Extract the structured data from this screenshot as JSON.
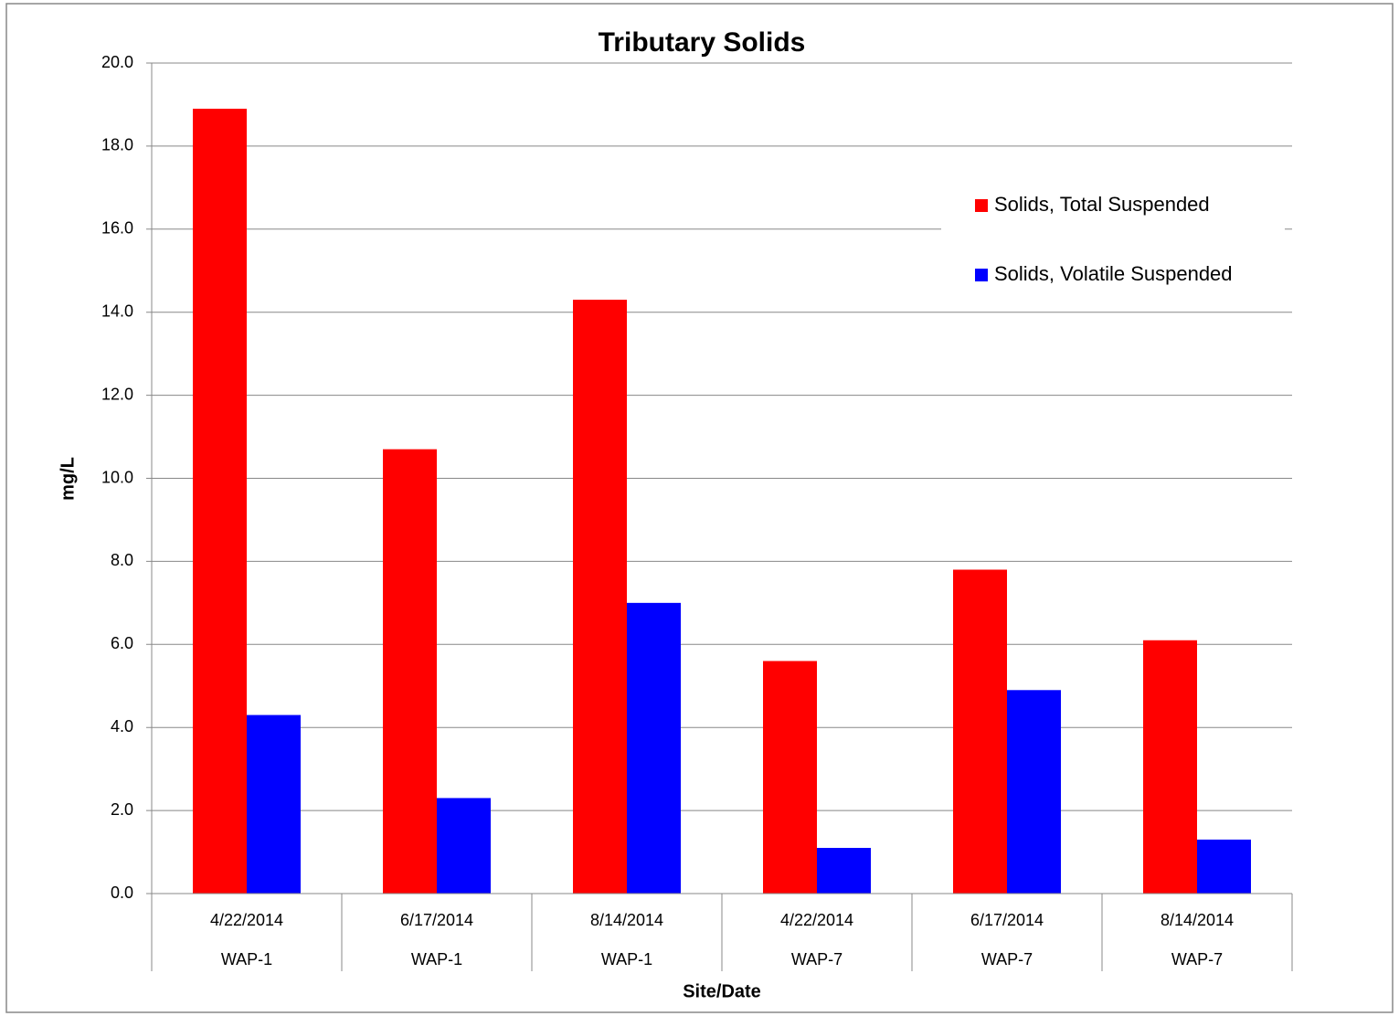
{
  "chart_data": {
    "type": "bar",
    "title": "Tributary Solids",
    "x_label": "Site/Date",
    "y_label": "mg/L",
    "categories": [
      "4/22/2014",
      "6/17/2014",
      "8/14/2014",
      "4/22/2014",
      "6/17/2014",
      "8/14/2014"
    ],
    "category_groups": [
      "WAP-1",
      "WAP-1",
      "WAP-1",
      "WAP-7",
      "WAP-7",
      "WAP-7"
    ],
    "series": [
      {
        "name": "Solids, Total Suspended",
        "color": "#ff0000",
        "values": [
          18.9,
          10.7,
          14.3,
          5.6,
          7.8,
          6.1
        ]
      },
      {
        "name": "Solids, Volatile Suspended",
        "color": "#0000ff",
        "values": [
          4.3,
          2.3,
          7.0,
          1.1,
          4.9,
          1.3
        ]
      }
    ],
    "ylim": [
      0,
      20
    ],
    "yticks": [
      {
        "value": 0,
        "label": "0.0"
      },
      {
        "value": 2,
        "label": "2.0"
      },
      {
        "value": 4,
        "label": "4.0"
      },
      {
        "value": 6,
        "label": "6.0"
      },
      {
        "value": 8,
        "label": "8.0"
      },
      {
        "value": 10,
        "label": "10.0"
      },
      {
        "value": 12,
        "label": "12.0"
      },
      {
        "value": 14,
        "label": "14.0"
      },
      {
        "value": 16,
        "label": "16.0"
      },
      {
        "value": 18,
        "label": "18.0"
      },
      {
        "value": 20,
        "label": "20.0"
      }
    ],
    "grid": true,
    "legend": "upper right"
  }
}
